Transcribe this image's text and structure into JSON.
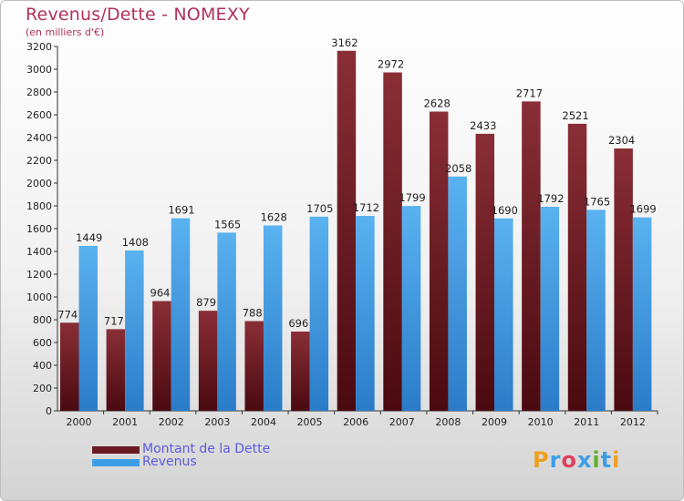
{
  "title": "Revenus/Dette - NOMEXY",
  "subtitle": "(en milliers d'€)",
  "chart_data": {
    "type": "bar",
    "categories": [
      "2000",
      "2001",
      "2002",
      "2003",
      "2004",
      "2005",
      "2006",
      "2007",
      "2008",
      "2009",
      "2010",
      "2011",
      "2012"
    ],
    "series": [
      {
        "name": "Montant de la Dette",
        "color": "#6b1a22",
        "values": [
          774,
          717,
          964,
          879,
          788,
          696,
          3162,
          2972,
          2628,
          2433,
          2717,
          2521,
          2304
        ]
      },
      {
        "name": "Revenus",
        "color": "#3d9ee8",
        "values": [
          1449,
          1408,
          1691,
          1565,
          1628,
          1705,
          1712,
          1799,
          2058,
          1690,
          1792,
          1765,
          1699
        ]
      }
    ],
    "ylim": [
      0,
      3200
    ],
    "yticks": [
      0,
      200,
      400,
      600,
      800,
      1000,
      1200,
      1400,
      1600,
      1800,
      2000,
      2200,
      2400,
      2600,
      2800,
      3000,
      3200
    ],
    "grid": false,
    "legend_position": "bottom-left"
  },
  "legend": [
    {
      "label": "Montant de la Dette",
      "color": "#6b1a22"
    },
    {
      "label": "Revenus",
      "color": "#3d9ee8"
    }
  ],
  "logo": {
    "letters": [
      "P",
      "r",
      "o",
      "x",
      "i",
      "t",
      "i"
    ],
    "colors": [
      "#f0a020",
      "#3d9ee8",
      "#e04060",
      "#3d9ee8",
      "#60b030",
      "#3d9ee8",
      "#f0a020"
    ]
  }
}
